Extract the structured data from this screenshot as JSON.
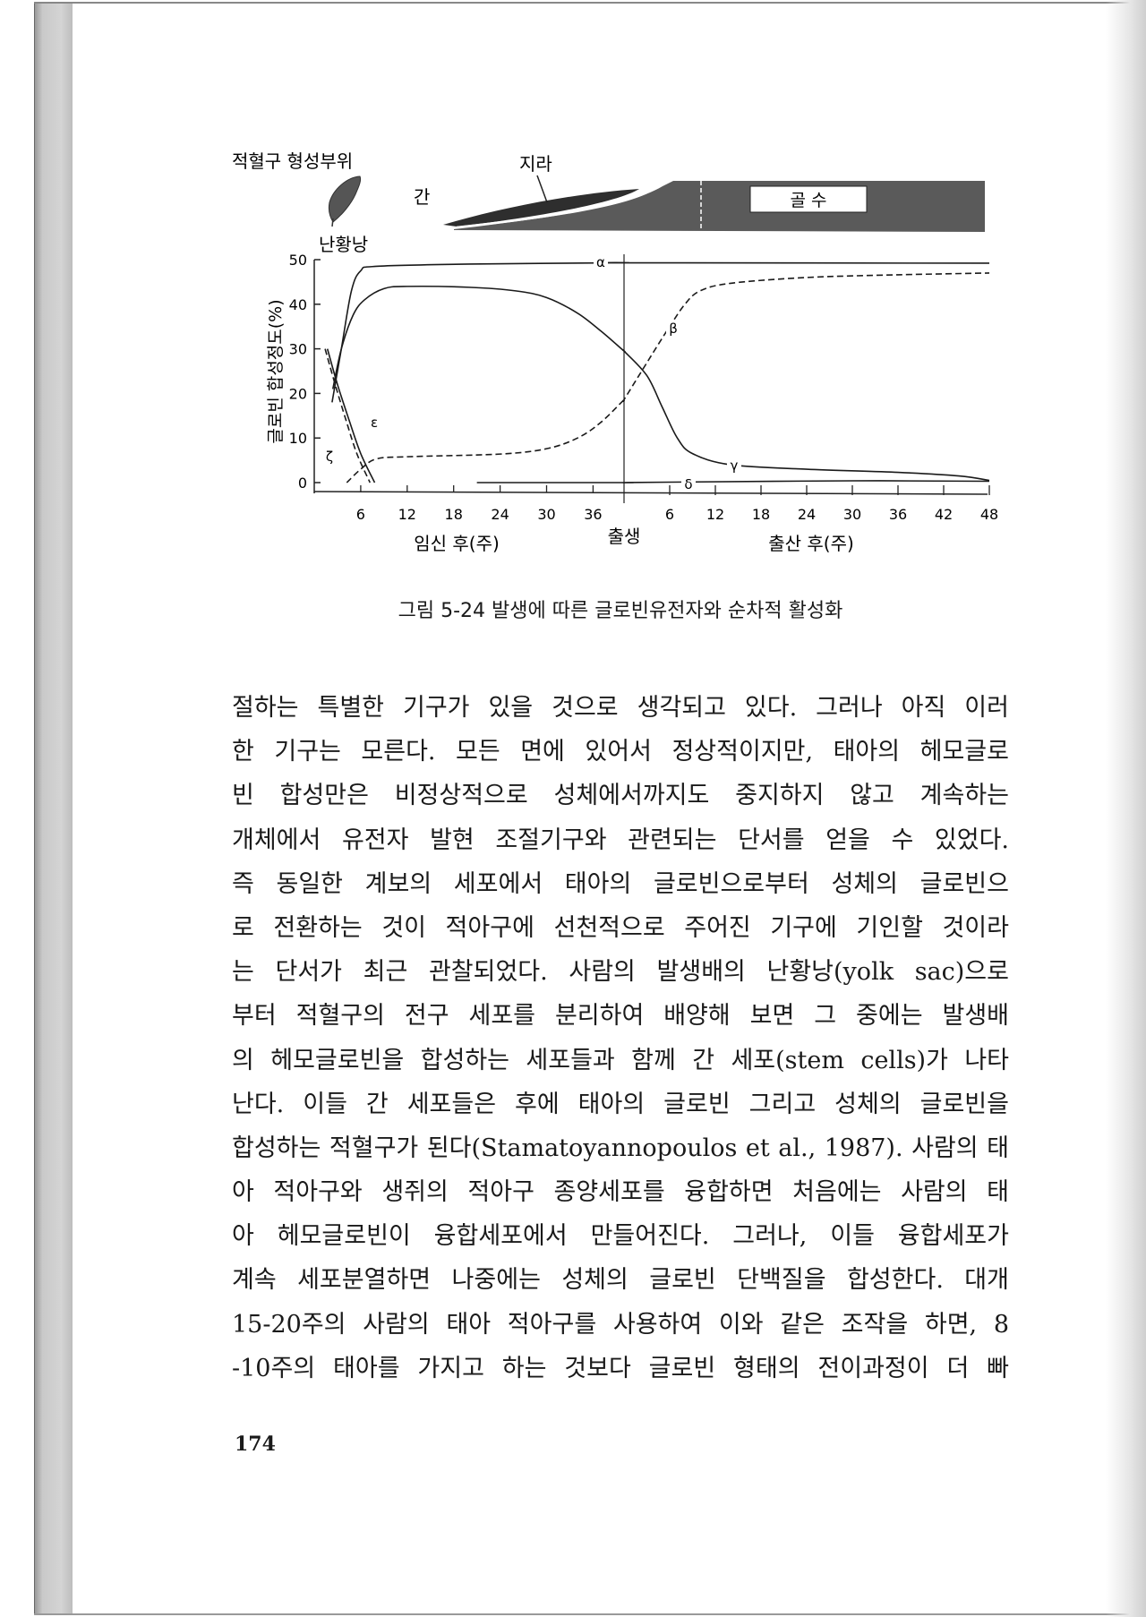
{
  "figure": {
    "diagram_labels": {
      "erythropoiesis_site": "적혈구 형성부위",
      "yolk_sac": "난황낭",
      "liver": "간",
      "spleen": "지라",
      "bone_marrow": "골 수"
    },
    "caption": "그림 5-24 발생에 따른 글로빈유전자와 순차적 활성화"
  },
  "chart_data": {
    "type": "line",
    "ylabel": "글로빈 합성정도(%)",
    "ylim": [
      0,
      50
    ],
    "yticks": [
      "0",
      "10",
      "20",
      "30",
      "40",
      "50"
    ],
    "x_prenatal_label": "임신 후(주)",
    "x_birth_label": "출생",
    "x_postnatal_label": "출산 후(주)",
    "x_prenatal_ticks": [
      "6",
      "12",
      "18",
      "24",
      "30",
      "36"
    ],
    "x_postnatal_ticks": [
      "6",
      "12",
      "18",
      "24",
      "30",
      "36",
      "42",
      "48"
    ],
    "birth_week": 40,
    "grid": false,
    "series": [
      {
        "name": "α",
        "style": "solid",
        "prenatal": [
          [
            2.3,
            18
          ],
          [
            3.5,
            30
          ],
          [
            4.8,
            43
          ],
          [
            6,
            47.5
          ],
          [
            8,
            48.5
          ],
          [
            20,
            49
          ],
          [
            40,
            49.3
          ]
        ],
        "postnatal": [
          [
            0,
            49.3
          ],
          [
            48,
            49.2
          ]
        ]
      },
      {
        "name": "γ",
        "style": "solid",
        "prenatal": [
          [
            2.4,
            21
          ],
          [
            3.5,
            30
          ],
          [
            5,
            37.5
          ],
          [
            6.5,
            41
          ],
          [
            9,
            43.5
          ],
          [
            12,
            44
          ],
          [
            20,
            43.8
          ],
          [
            26,
            43
          ],
          [
            30,
            41.5
          ],
          [
            34,
            38
          ],
          [
            37,
            34
          ],
          [
            40,
            29.5
          ]
        ],
        "postnatal": [
          [
            0,
            29.5
          ],
          [
            3,
            24
          ],
          [
            5,
            17
          ],
          [
            7,
            10
          ],
          [
            9,
            6.5
          ],
          [
            14,
            4
          ],
          [
            24,
            3
          ],
          [
            36,
            2.3
          ],
          [
            44,
            1.5
          ],
          [
            48,
            0.5
          ]
        ]
      },
      {
        "name": "β",
        "style": "dashed",
        "prenatal": [
          [
            4.2,
            0
          ],
          [
            6,
            3
          ],
          [
            8,
            5.3
          ],
          [
            12,
            5.8
          ],
          [
            24,
            6.4
          ],
          [
            30,
            7.6
          ],
          [
            34,
            10
          ],
          [
            37,
            13.5
          ],
          [
            40,
            18.6
          ]
        ],
        "postnatal": [
          [
            0,
            18.6
          ],
          [
            2.5,
            25.5
          ],
          [
            4.5,
            31
          ],
          [
            6,
            35
          ],
          [
            8,
            40
          ],
          [
            10,
            43
          ],
          [
            14,
            44.7
          ],
          [
            24,
            46
          ],
          [
            36,
            46.6
          ],
          [
            48,
            47
          ]
        ]
      },
      {
        "name": "ε",
        "style": "solid",
        "prenatal": [
          [
            1.7,
            30
          ],
          [
            3,
            22
          ],
          [
            4.5,
            14
          ],
          [
            6,
            6.5
          ],
          [
            7.8,
            0
          ]
        ],
        "postnatal": []
      },
      {
        "name": "ζ",
        "style": "dashed",
        "prenatal": [
          [
            1.4,
            30
          ],
          [
            2.7,
            22
          ],
          [
            4.1,
            14
          ],
          [
            5.5,
            6.5
          ],
          [
            7.2,
            0
          ]
        ],
        "postnatal": []
      },
      {
        "name": "δ",
        "style": "solid",
        "prenatal": [
          [
            21,
            0
          ],
          [
            40,
            0
          ]
        ],
        "postnatal": [
          [
            0,
            0
          ],
          [
            6,
            0.1
          ],
          [
            30,
            0.4
          ],
          [
            48,
            0.3
          ]
        ]
      }
    ]
  },
  "body": {
    "lines": [
      "절하는 특별한 기구가 있을 것으로 생각되고 있다. 그러나 아직 이러",
      "한 기구는 모른다. 모든 면에 있어서 정상적이지만, 태아의 헤모글로",
      "빈 합성만은 비정상적으로 성체에서까지도 중지하지 않고 계속하는",
      "개체에서 유전자 발현 조절기구와 관련되는 단서를 얻을 수 있었다.",
      "즉 동일한 계보의 세포에서 태아의 글로빈으로부터 성체의 글로빈으",
      "로 전환하는 것이 적아구에 선천적으로 주어진 기구에 기인할 것이라",
      "는 단서가 최근 관찰되었다. 사람의 발생배의 난황낭(yolk sac)으로",
      "부터 적혈구의 전구 세포를 분리하여 배양해 보면 그 중에는 발생배",
      "의 헤모글로빈을 합성하는 세포들과 함께 간 세포(stem cells)가 나타",
      "난다. 이들 간 세포들은 후에 태아의 글로빈 그리고 성체의 글로빈을",
      "합성하는 적혈구가 된다(Stamatoyannopoulos et al., 1987). 사람의 태",
      "아 적아구와 생쥐의 적아구 종양세포를 융합하면 처음에는 사람의 태",
      "아 헤모글로빈이 융합세포에서 만들어진다. 그러나, 이들 융합세포가",
      "계속 세포분열하면 나중에는 성체의 글로빈 단백질을 합성한다. 대개",
      "15-20주의 사람의 태아 적아구를 사용하여 이와 같은 조작을 하면, 8",
      "-10주의 태아를 가지고 하는 것보다 글로빈 형태의 전이과정이 더 빠"
    ]
  },
  "page_number": "174"
}
